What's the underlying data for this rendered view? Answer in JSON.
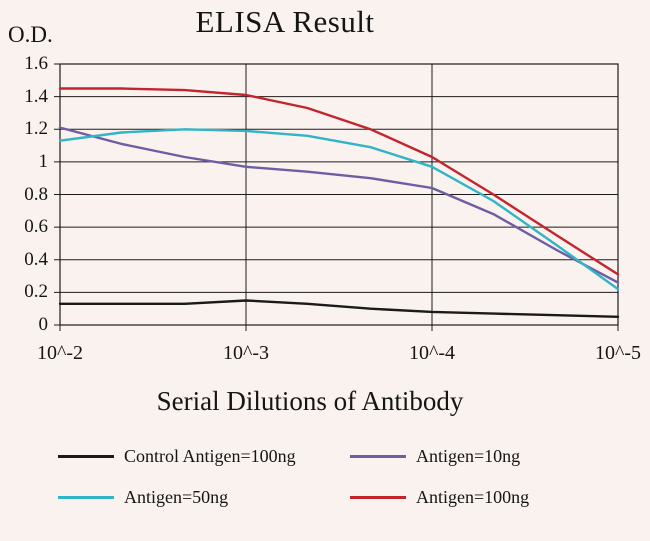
{
  "chart_data": {
    "type": "line",
    "title": "ELISA Result",
    "ylabel": "O.D.",
    "xlabel": "Serial Dilutions of Antibody",
    "x_tick_labels": [
      "10^-2",
      "10^-3",
      "10^-4",
      "10^-5"
    ],
    "y_tick_labels": [
      "0",
      "0.2",
      "0.4",
      "0.6",
      "0.8",
      "1",
      "1.2",
      "1.4",
      "1.6"
    ],
    "ylim": [
      0,
      1.6
    ],
    "grid": true,
    "legend_position": "bottom",
    "x": [
      0,
      0.33,
      0.67,
      1,
      1.33,
      1.67,
      2,
      2.33,
      2.67,
      3
    ],
    "series": [
      {
        "name": "Control Antigen=100ng",
        "color": "#1a1a1a",
        "values": [
          0.13,
          0.13,
          0.13,
          0.15,
          0.13,
          0.1,
          0.08,
          0.07,
          0.06,
          0.05
        ]
      },
      {
        "name": "Antigen=10ng",
        "color": "#6f5da3",
        "values": [
          1.21,
          1.11,
          1.03,
          0.97,
          0.94,
          0.9,
          0.84,
          0.68,
          0.46,
          0.26
        ]
      },
      {
        "name": "Antigen=50ng",
        "color": "#31b4c6",
        "values": [
          1.13,
          1.18,
          1.2,
          1.19,
          1.16,
          1.09,
          0.97,
          0.76,
          0.49,
          0.22
        ]
      },
      {
        "name": "Antigen=100ng",
        "color": "#c4242b",
        "values": [
          1.45,
          1.45,
          1.44,
          1.41,
          1.33,
          1.2,
          1.03,
          0.8,
          0.55,
          0.31
        ]
      }
    ]
  }
}
